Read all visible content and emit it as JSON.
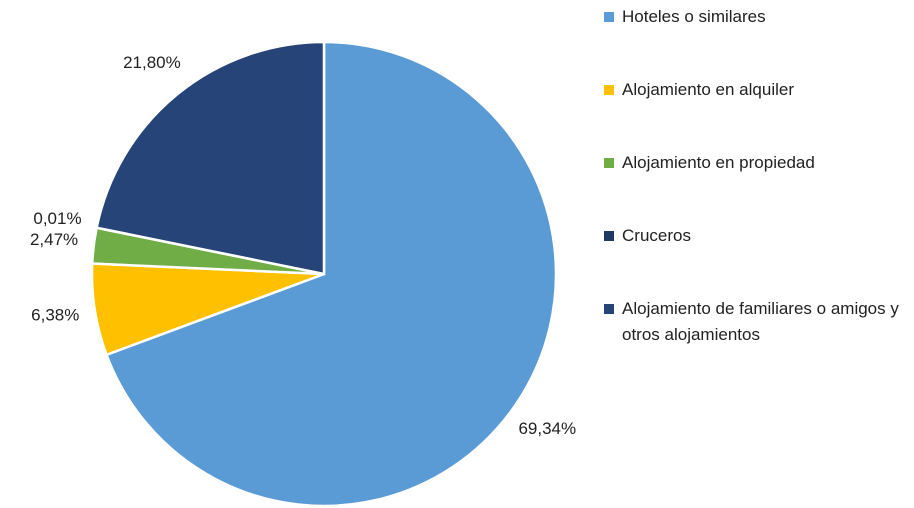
{
  "chart_data": {
    "type": "pie",
    "categories": [
      "Hoteles o similares",
      "Alojamiento en alquiler",
      "Alojamiento en propiedad",
      "Cruceros",
      "Alojamiento de familiares o amigos y otros alojamientos"
    ],
    "values": [
      69.34,
      6.38,
      2.47,
      0.01,
      21.8
    ],
    "value_labels": [
      "69,34%",
      "6,38%",
      "2,47%",
      "0,01%",
      "21,80%"
    ],
    "colors": [
      "#5b9bd5",
      "#ffc000",
      "#70ad47",
      "#203864",
      "#264478"
    ]
  }
}
